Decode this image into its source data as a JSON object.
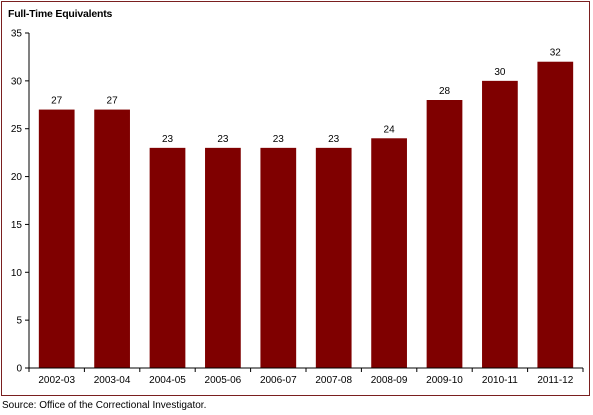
{
  "chart_data": {
    "type": "bar",
    "title": "",
    "ylabel": "Full-Time Equivalents",
    "xlabel": "",
    "categories": [
      "2002-03",
      "2003-04",
      "2004-05",
      "2005-06",
      "2006-07",
      "2007-08",
      "2008-09",
      "2009-10",
      "2010-11",
      "2011-12"
    ],
    "values": [
      27,
      27,
      23,
      23,
      23,
      23,
      24,
      28,
      30,
      32
    ],
    "ylim": [
      0,
      35
    ],
    "yticks": [
      0,
      5,
      10,
      15,
      20,
      25,
      30,
      35
    ],
    "grid": false,
    "legend": "none",
    "bar_color": "#7f0000",
    "border_color": "#7a1f1f"
  },
  "source": "Source:  Office of the Correctional Investigator."
}
